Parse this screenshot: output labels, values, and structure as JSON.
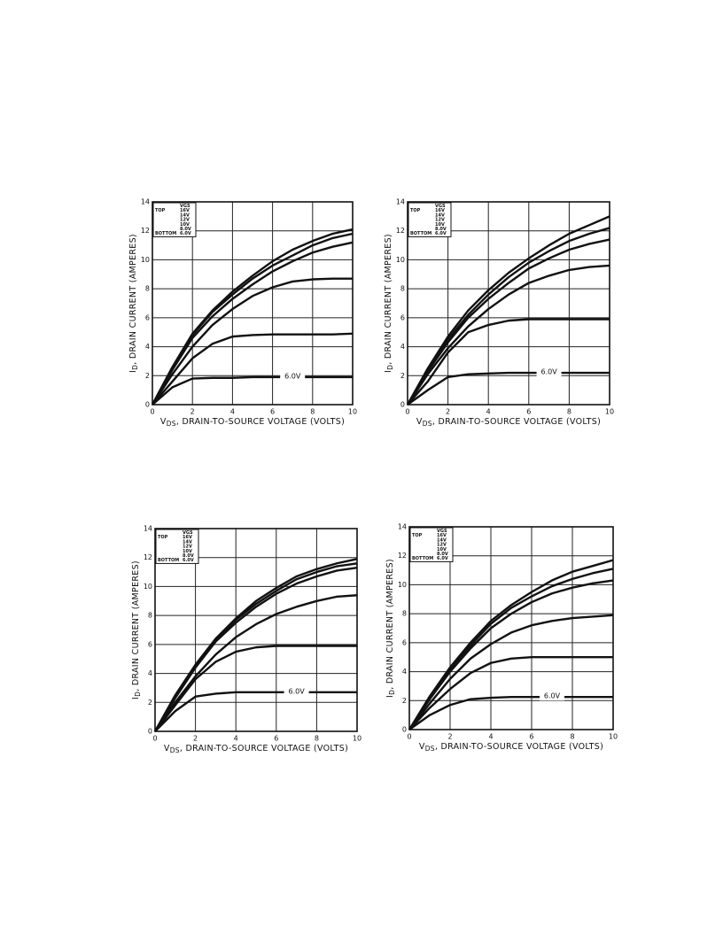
{
  "chart_data": [
    {
      "type": "line",
      "ylabel_symbol": "I",
      "ylabel_sub": "D",
      "ylabel": ", DRAIN CURRENT (AMPERES)",
      "xlabel_symbol": "V",
      "xlabel_sub": "DS",
      "xlabel": ", DRAIN-TO-SOURCE VOLTAGE (VOLTS)",
      "legend_title": "VGS",
      "legend_top": "TOP",
      "legend_bottom": "BOTTOM",
      "annotation": "6.0V",
      "xlim": [
        0,
        10
      ],
      "ylim": [
        0,
        14
      ],
      "xticks": [
        0,
        2,
        4,
        6,
        8,
        10
      ],
      "yticks": [
        0,
        2,
        4,
        6,
        8,
        10,
        12,
        14
      ],
      "grid": true,
      "x": [
        0,
        1,
        2,
        3,
        4,
        5,
        6,
        7,
        8,
        9,
        10
      ],
      "series": [
        {
          "name": "16V",
          "color": "#111111",
          "values": [
            0,
            2.6,
            4.9,
            6.5,
            7.8,
            8.9,
            9.9,
            10.7,
            11.3,
            11.8,
            12.1
          ]
        },
        {
          "name": "14V",
          "color": "#111111",
          "values": [
            0,
            2.5,
            4.8,
            6.4,
            7.6,
            8.7,
            9.6,
            10.3,
            11.0,
            11.5,
            11.8
          ]
        },
        {
          "name": "12V",
          "color": "#111111",
          "values": [
            0,
            2.4,
            4.6,
            6.1,
            7.3,
            8.3,
            9.2,
            9.9,
            10.5,
            10.9,
            11.2
          ]
        },
        {
          "name": "10V",
          "color": "#111111",
          "values": [
            0,
            2.1,
            4.0,
            5.5,
            6.6,
            7.5,
            8.1,
            8.5,
            8.65,
            8.7,
            8.7
          ]
        },
        {
          "name": "8.0V",
          "color": "#111111",
          "values": [
            0,
            1.6,
            3.2,
            4.2,
            4.7,
            4.8,
            4.85,
            4.85,
            4.85,
            4.85,
            4.9
          ]
        },
        {
          "name": "6.0V",
          "color": "#111111",
          "values": [
            0,
            1.2,
            1.8,
            1.85,
            1.85,
            1.9,
            1.9,
            1.9,
            1.9,
            1.9,
            1.9
          ]
        }
      ]
    },
    {
      "type": "line",
      "ylabel_symbol": "I",
      "ylabel_sub": "D",
      "ylabel": ", DRAIN CURRENT (AMPERES)",
      "xlabel_symbol": "V",
      "xlabel_sub": "DS",
      "xlabel": ", DRAIN-TO-SOURCE VOLTAGE (VOLTS)",
      "legend_title": "VGS",
      "legend_top": "TOP",
      "legend_bottom": "BOTTOM",
      "annotation": "6.0V",
      "xlim": [
        0,
        10
      ],
      "ylim": [
        0,
        14
      ],
      "xticks": [
        0,
        2,
        4,
        6,
        8,
        10
      ],
      "yticks": [
        0,
        2,
        4,
        6,
        8,
        10,
        12,
        14
      ],
      "grid": true,
      "x": [
        0,
        1,
        2,
        3,
        4,
        5,
        6,
        7,
        8,
        9,
        10
      ],
      "series": [
        {
          "name": "16V",
          "color": "#111111",
          "values": [
            0,
            2.5,
            4.7,
            6.5,
            7.9,
            9.1,
            10.1,
            11.0,
            11.8,
            12.4,
            13.0
          ]
        },
        {
          "name": "14V",
          "color": "#111111",
          "values": [
            0,
            2.4,
            4.5,
            6.2,
            7.6,
            8.8,
            9.8,
            10.6,
            11.3,
            11.8,
            12.2
          ]
        },
        {
          "name": "12V",
          "color": "#111111",
          "values": [
            0,
            2.3,
            4.3,
            6.0,
            7.3,
            8.4,
            9.4,
            10.1,
            10.7,
            11.1,
            11.4
          ]
        },
        {
          "name": "10V",
          "color": "#111111",
          "values": [
            0,
            2.1,
            3.9,
            5.4,
            6.6,
            7.6,
            8.4,
            8.9,
            9.3,
            9.5,
            9.6
          ]
        },
        {
          "name": "8.0V",
          "color": "#111111",
          "values": [
            0,
            1.6,
            3.6,
            5.0,
            5.5,
            5.8,
            5.9,
            5.9,
            5.9,
            5.9,
            5.9
          ]
        },
        {
          "name": "6.0V",
          "color": "#111111",
          "values": [
            0,
            1.0,
            1.9,
            2.1,
            2.15,
            2.2,
            2.2,
            2.2,
            2.2,
            2.2,
            2.2
          ]
        }
      ]
    },
    {
      "type": "line",
      "ylabel_symbol": "I",
      "ylabel_sub": "D",
      "ylabel": ", DRAIN CURRENT (AMPERES)",
      "xlabel_symbol": "V",
      "xlabel_sub": "DS",
      "xlabel": ", DRAIN-TO-SOURCE VOLTAGE (VOLTS)",
      "legend_title": "VGS",
      "legend_top": "TOP",
      "legend_bottom": "BOTTOM",
      "annotation": "6.0V",
      "xlim": [
        0,
        10
      ],
      "ylim": [
        0,
        14
      ],
      "xticks": [
        0,
        2,
        4,
        6,
        8,
        10
      ],
      "yticks": [
        0,
        2,
        4,
        6,
        8,
        10,
        12,
        14
      ],
      "grid": true,
      "x": [
        0,
        1,
        2,
        3,
        4,
        5,
        6,
        7,
        8,
        9,
        10
      ],
      "series": [
        {
          "name": "16V",
          "color": "#111111",
          "values": [
            0,
            2.5,
            4.6,
            6.4,
            7.8,
            9.0,
            9.9,
            10.7,
            11.2,
            11.6,
            11.9
          ]
        },
        {
          "name": "14V",
          "color": "#111111",
          "values": [
            0,
            2.4,
            4.5,
            6.3,
            7.7,
            8.8,
            9.7,
            10.5,
            11.0,
            11.4,
            11.6
          ]
        },
        {
          "name": "12V",
          "color": "#111111",
          "values": [
            0,
            2.3,
            4.4,
            6.2,
            7.5,
            8.6,
            9.5,
            10.2,
            10.7,
            11.1,
            11.3
          ]
        },
        {
          "name": "10V",
          "color": "#111111",
          "values": [
            0,
            2.0,
            3.8,
            5.3,
            6.5,
            7.4,
            8.1,
            8.6,
            9.0,
            9.3,
            9.4
          ]
        },
        {
          "name": "8.0V",
          "color": "#111111",
          "values": [
            0,
            1.8,
            3.6,
            4.8,
            5.5,
            5.8,
            5.9,
            5.9,
            5.9,
            5.9,
            5.9
          ]
        },
        {
          "name": "6.0V",
          "color": "#111111",
          "values": [
            0,
            1.4,
            2.4,
            2.6,
            2.7,
            2.7,
            2.7,
            2.7,
            2.7,
            2.7,
            2.7
          ]
        }
      ]
    },
    {
      "type": "line",
      "ylabel_symbol": "I",
      "ylabel_sub": "D",
      "ylabel": ", DRAIN CURRENT (AMPERES)",
      "xlabel_symbol": "V",
      "xlabel_sub": "DS",
      "xlabel": ", DRAIN-TO-SOURCE VOLTAGE (VOLTS)",
      "legend_title": "VGS",
      "legend_top": "TOP",
      "legend_bottom": "BOTTOM",
      "annotation": "6.0V",
      "xlim": [
        0,
        10
      ],
      "ylim": [
        0,
        14
      ],
      "xticks": [
        0,
        2,
        4,
        6,
        8,
        10
      ],
      "yticks": [
        0,
        2,
        4,
        6,
        8,
        10,
        12,
        14
      ],
      "grid": true,
      "x": [
        0,
        1,
        2,
        3,
        4,
        5,
        6,
        7,
        8,
        9,
        10
      ],
      "series": [
        {
          "name": "16V",
          "color": "#111111",
          "values": [
            0,
            2.3,
            4.3,
            6.0,
            7.5,
            8.6,
            9.5,
            10.3,
            10.9,
            11.3,
            11.7
          ]
        },
        {
          "name": "14V",
          "color": "#111111",
          "values": [
            0,
            2.2,
            4.2,
            5.8,
            7.3,
            8.4,
            9.2,
            9.9,
            10.4,
            10.8,
            11.1
          ]
        },
        {
          "name": "12V",
          "color": "#111111",
          "values": [
            0,
            2.1,
            4.0,
            5.6,
            7.0,
            8.0,
            8.8,
            9.4,
            9.8,
            10.1,
            10.3
          ]
        },
        {
          "name": "10V",
          "color": "#111111",
          "values": [
            0,
            1.8,
            3.5,
            4.9,
            5.9,
            6.7,
            7.2,
            7.5,
            7.7,
            7.8,
            7.9
          ]
        },
        {
          "name": "8.0V",
          "color": "#111111",
          "values": [
            0,
            1.5,
            2.8,
            3.9,
            4.6,
            4.9,
            5.0,
            5.0,
            5.0,
            5.0,
            5.0
          ]
        },
        {
          "name": "6.0V",
          "color": "#111111",
          "values": [
            0,
            1.0,
            1.7,
            2.1,
            2.2,
            2.25,
            2.25,
            2.25,
            2.25,
            2.25,
            2.25
          ]
        }
      ]
    }
  ]
}
